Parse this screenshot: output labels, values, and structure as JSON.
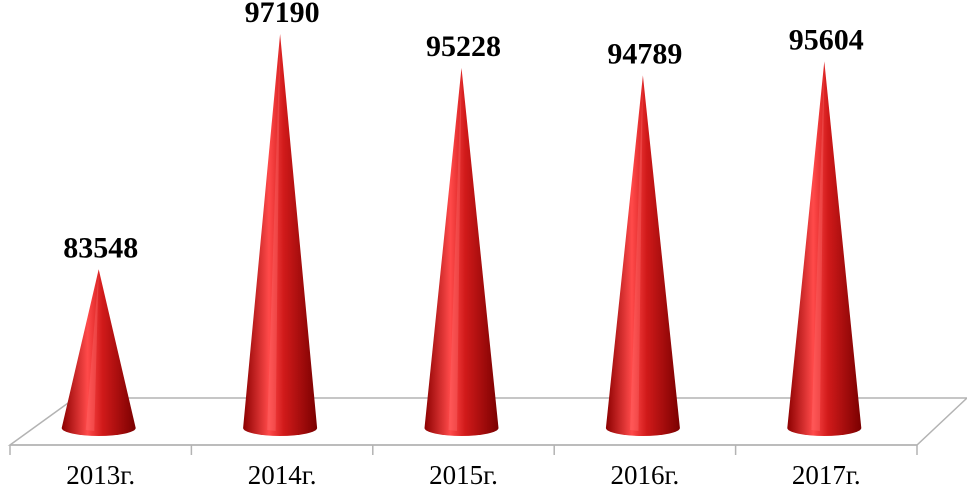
{
  "chart_data": {
    "type": "bar",
    "bar_shape": "cone",
    "categories": [
      "2013г.",
      "2014г.",
      "2015г.",
      "2016г.",
      "2017г."
    ],
    "values": [
      83548,
      97190,
      95228,
      94789,
      95604
    ],
    "data_labels": [
      "83548",
      "97190",
      "95228",
      "94789",
      "95604"
    ],
    "title": "",
    "xlabel": "",
    "ylabel": "",
    "ylim": [
      78000,
      98000
    ],
    "grid": false,
    "legend": "none",
    "colors": {
      "bar": "#d11a1a",
      "bar_dark": "#8c0000",
      "bar_light": "#ff5a5a",
      "floor_stroke": "#b3b3b3",
      "text": "#000000"
    }
  }
}
